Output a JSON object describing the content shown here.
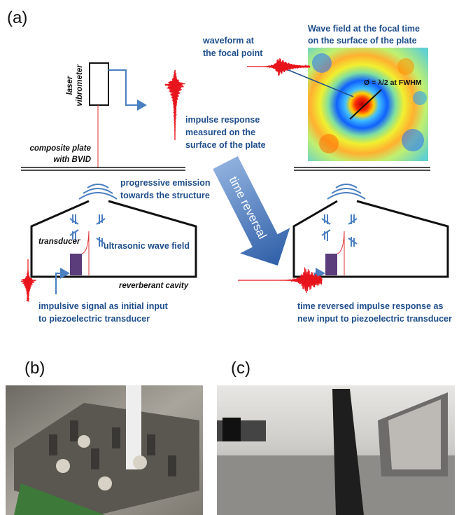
{
  "panels": {
    "a": "(a)",
    "b": "(b)",
    "c": "(c)"
  },
  "labels": {
    "laser": [
      "laser",
      "vibrometer"
    ],
    "waveform_focal": [
      "waveform at",
      "the focal point"
    ],
    "wave_field": [
      "Wave field at the focal time",
      "on the surface of the plate"
    ],
    "fwhm": "Ø = λ/2 at FWHM",
    "impulse_response": [
      "impulse response",
      "measured on the",
      "surface of the plate"
    ],
    "plate": [
      "composite plate",
      "with BVID"
    ],
    "emission": [
      "progressive emission",
      "towards the structure"
    ],
    "time_reversal": "time reversal",
    "transducer": "transducer",
    "wave_field_us": "ultrasonic wave field",
    "cavity": "reverberant cavity",
    "initial_input": [
      "impulsive signal as initial input",
      "to piezoelectric transducer"
    ],
    "new_input": [
      "time reversed impulse response as",
      "new input to piezoelectric transducer"
    ]
  }
}
